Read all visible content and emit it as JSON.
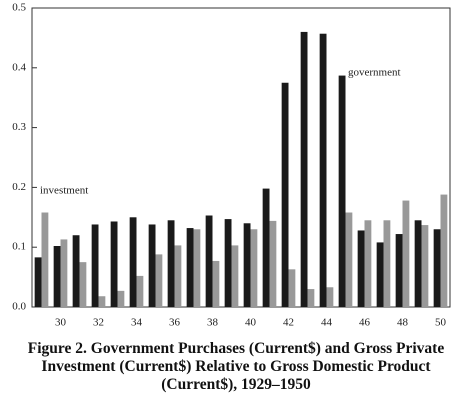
{
  "chart_data": {
    "type": "bar",
    "categories": [
      null,
      "30",
      null,
      "32",
      null,
      "34",
      null,
      "36",
      null,
      "38",
      null,
      "40",
      null,
      "42",
      null,
      "44",
      null,
      "46",
      null,
      "48",
      null,
      "50"
    ],
    "series": [
      {
        "name": "government",
        "color": "#1a1a1a",
        "values": [
          0.083,
          0.102,
          0.12,
          0.138,
          0.143,
          0.15,
          0.138,
          0.145,
          0.132,
          0.153,
          0.147,
          0.14,
          0.198,
          0.375,
          0.46,
          0.457,
          0.387,
          0.128,
          0.108,
          0.122,
          0.145,
          0.13
        ]
      },
      {
        "name": "investment",
        "color": "#999999",
        "values": [
          0.158,
          0.113,
          0.075,
          0.018,
          0.027,
          0.052,
          0.088,
          0.103,
          0.13,
          0.077,
          0.103,
          0.13,
          0.144,
          0.063,
          0.03,
          0.033,
          0.158,
          0.145,
          0.145,
          0.178,
          0.137,
          0.188
        ]
      }
    ],
    "ylim": [
      0,
      0.5
    ],
    "yticks": [
      {
        "value": 0,
        "label": "0.0"
      },
      0.1,
      0.2,
      0.3,
      0.4,
      0.5
    ],
    "grid": false,
    "caption": "Figure 2. Government Purchases (Current$) and Gross Private Investment (Current$) Relative to Gross Domestic Product (Current$), 1929–1950"
  }
}
